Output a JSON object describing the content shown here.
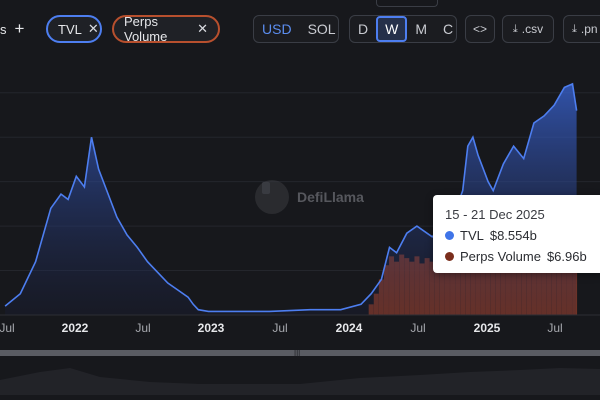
{
  "toolbar": {
    "left_cut_label": "s",
    "add_icon": "plus-icon",
    "metrics": [
      {
        "label": "TVL",
        "color": "#4d7ef0"
      },
      {
        "label": "Perps Volume",
        "color": "#b8502e"
      }
    ],
    "currency": {
      "options": [
        "USD",
        "SOL"
      ],
      "selected": "USD"
    },
    "interval": {
      "options": [
        "D",
        "W",
        "M",
        "C"
      ],
      "selected": "W"
    },
    "embed_label": "<>",
    "csv_label": ".csv",
    "png_label": ".pn"
  },
  "watermark": "DefiLlama",
  "tooltip": {
    "date": "15 - 21 Dec 2025",
    "rows": [
      {
        "name": "TVL",
        "value": "$8.554b",
        "color": "#3f74e8"
      },
      {
        "name": "Perps Volume",
        "value": "$6.96b",
        "color": "#7a2e1c"
      }
    ]
  },
  "chart_data": {
    "type": "area",
    "x_ticks": [
      "Jul",
      "2022",
      "Jul",
      "2023",
      "Jul",
      "2024",
      "Jul",
      "2025",
      "Jul"
    ],
    "series": [
      {
        "name": "TVL",
        "color": "#4d7ef0",
        "kind": "area",
        "points": [
          [
            0.0,
            0.05
          ],
          [
            0.15,
            0.12
          ],
          [
            0.3,
            0.3
          ],
          [
            0.45,
            0.6
          ],
          [
            0.55,
            0.68
          ],
          [
            0.62,
            0.65
          ],
          [
            0.7,
            0.78
          ],
          [
            0.78,
            0.72
          ],
          [
            0.85,
            1.0
          ],
          [
            0.92,
            0.82
          ],
          [
            1.0,
            0.7
          ],
          [
            1.1,
            0.55
          ],
          [
            1.2,
            0.45
          ],
          [
            1.3,
            0.38
          ],
          [
            1.4,
            0.3
          ],
          [
            1.5,
            0.24
          ],
          [
            1.6,
            0.18
          ],
          [
            1.7,
            0.14
          ],
          [
            1.8,
            0.1
          ],
          [
            1.85,
            0.06
          ],
          [
            1.9,
            0.03
          ],
          [
            2.0,
            0.02
          ],
          [
            2.3,
            0.02
          ],
          [
            2.6,
            0.02
          ],
          [
            3.0,
            0.03
          ],
          [
            3.3,
            0.03
          ],
          [
            3.5,
            0.06
          ],
          [
            3.6,
            0.12
          ],
          [
            3.7,
            0.2
          ],
          [
            3.78,
            0.38
          ],
          [
            3.85,
            0.35
          ],
          [
            3.95,
            0.46
          ],
          [
            4.05,
            0.5
          ],
          [
            4.2,
            0.44
          ],
          [
            4.35,
            0.52
          ],
          [
            4.45,
            0.62
          ],
          [
            4.5,
            0.7
          ],
          [
            4.55,
            0.95
          ],
          [
            4.6,
            1.0
          ],
          [
            4.65,
            0.9
          ],
          [
            4.75,
            0.75
          ],
          [
            4.8,
            0.7
          ],
          [
            4.9,
            0.85
          ],
          [
            5.0,
            0.95
          ],
          [
            5.1,
            0.88
          ],
          [
            5.2,
            1.08
          ],
          [
            5.3,
            1.12
          ],
          [
            5.4,
            1.18
          ],
          [
            5.5,
            1.28
          ],
          [
            5.58,
            1.3
          ],
          [
            5.62,
            1.15
          ]
        ]
      },
      {
        "name": "Perps Volume",
        "color": "#8a3a22",
        "kind": "bar",
        "points": [
          [
            3.6,
            0.06
          ],
          [
            3.65,
            0.12
          ],
          [
            3.7,
            0.2
          ],
          [
            3.75,
            0.28
          ],
          [
            3.8,
            0.33
          ],
          [
            3.85,
            0.3
          ],
          [
            3.9,
            0.34
          ],
          [
            3.95,
            0.32
          ],
          [
            4.0,
            0.3
          ],
          [
            4.05,
            0.33
          ],
          [
            4.1,
            0.29
          ],
          [
            4.15,
            0.32
          ],
          [
            4.2,
            0.3
          ],
          [
            4.25,
            0.31
          ],
          [
            4.3,
            0.34
          ],
          [
            4.35,
            0.33
          ],
          [
            4.4,
            0.35
          ],
          [
            4.45,
            0.34
          ],
          [
            4.5,
            0.36
          ],
          [
            4.55,
            0.35
          ],
          [
            4.6,
            0.37
          ],
          [
            4.65,
            0.35
          ],
          [
            4.7,
            0.33
          ],
          [
            4.75,
            0.34
          ],
          [
            4.8,
            0.36
          ],
          [
            4.85,
            0.35
          ],
          [
            4.9,
            0.34
          ],
          [
            4.95,
            0.36
          ],
          [
            5.0,
            0.35
          ],
          [
            5.05,
            0.37
          ],
          [
            5.1,
            0.36
          ],
          [
            5.15,
            0.35
          ],
          [
            5.2,
            0.37
          ],
          [
            5.25,
            0.36
          ],
          [
            5.3,
            0.35
          ],
          [
            5.35,
            0.37
          ],
          [
            5.4,
            0.36
          ],
          [
            5.45,
            0.38
          ],
          [
            5.5,
            0.36
          ],
          [
            5.55,
            0.37
          ],
          [
            5.6,
            0.36
          ]
        ]
      }
    ],
    "grid": "horizontal",
    "legend": "none"
  }
}
